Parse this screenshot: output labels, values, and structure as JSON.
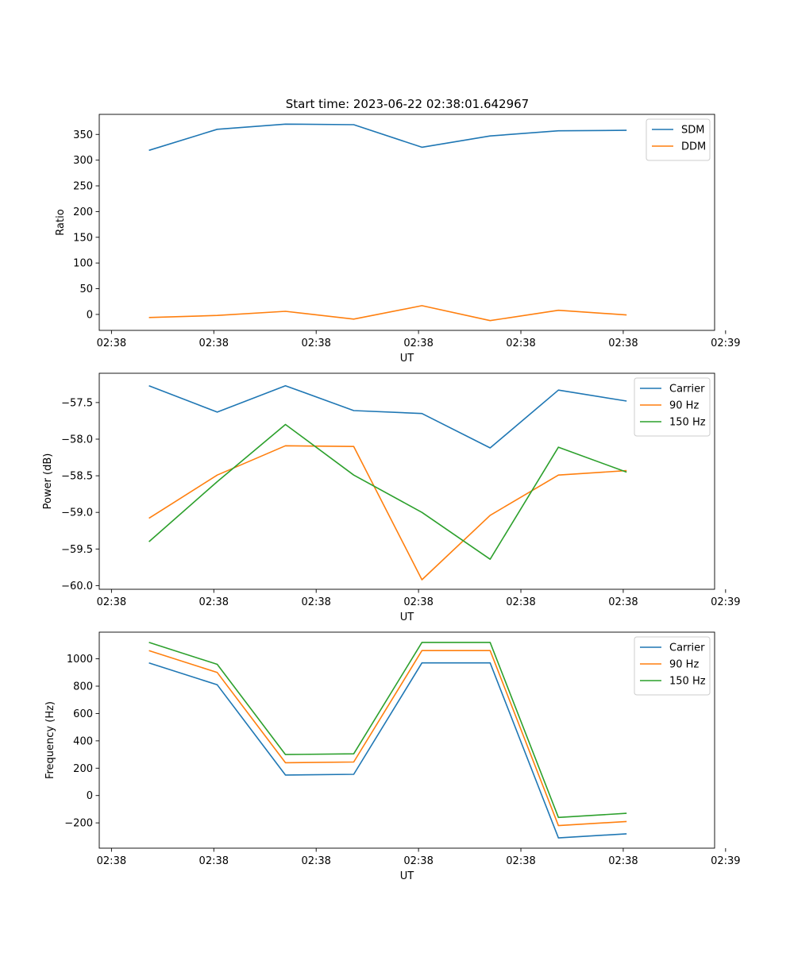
{
  "figure": {
    "title": "Start time: 2023-06-22 02:38:01.642967"
  },
  "chart_data": [
    {
      "type": "line",
      "xlabel": "UT",
      "ylabel": "Ratio",
      "x": [
        1,
        2,
        3,
        4,
        5,
        6,
        7,
        8
      ],
      "xlim": [
        0.271,
        9.289
      ],
      "x_ticks": [
        0.45,
        1.95,
        3.45,
        4.95,
        6.45,
        7.95,
        9.45
      ],
      "x_tick_labels": [
        "02:38",
        "02:38",
        "02:38",
        "02:38",
        "02:38",
        "02:38",
        "02:39"
      ],
      "ylim": [
        -31,
        389
      ],
      "y_ticks": [
        0,
        50,
        100,
        150,
        200,
        250,
        300,
        350
      ],
      "legend_position": "top-right",
      "series": [
        {
          "name": "SDM",
          "color": "#1f77b4",
          "values": [
            319,
            360,
            370,
            369,
            325,
            347,
            357,
            358
          ]
        },
        {
          "name": "DDM",
          "color": "#ff7f0e",
          "values": [
            -6,
            -2,
            6,
            -9,
            17,
            -12,
            8,
            -1
          ]
        }
      ]
    },
    {
      "type": "line",
      "xlabel": "UT",
      "ylabel": "Power (dB)",
      "x": [
        1,
        2,
        3,
        4,
        5,
        6,
        7,
        8
      ],
      "xlim": [
        0.271,
        9.289
      ],
      "x_ticks": [
        0.45,
        1.95,
        3.45,
        4.95,
        6.45,
        7.95,
        9.45
      ],
      "x_tick_labels": [
        "02:38",
        "02:38",
        "02:38",
        "02:38",
        "02:38",
        "02:38",
        "02:39"
      ],
      "ylim": [
        -60.05,
        -57.1
      ],
      "y_ticks": [
        -60.0,
        -59.5,
        -59.0,
        -58.5,
        -58.0,
        -57.5
      ],
      "y_tick_labels": [
        "−60.0",
        "−59.5",
        "−59.0",
        "−58.5",
        "−58.0",
        "−57.5"
      ],
      "legend_position": "top-right",
      "series": [
        {
          "name": "Carrier",
          "color": "#1f77b4",
          "values": [
            -57.27,
            -57.63,
            -57.27,
            -57.61,
            -57.65,
            -58.12,
            -57.33,
            -57.48
          ]
        },
        {
          "name": "90 Hz",
          "color": "#ff7f0e",
          "values": [
            -59.08,
            -58.49,
            -58.09,
            -58.1,
            -59.92,
            -59.04,
            -58.49,
            -58.43
          ]
        },
        {
          "name": "150 Hz",
          "color": "#2ca02c",
          "values": [
            -59.4,
            -58.58,
            -57.8,
            -58.49,
            -59.0,
            -59.64,
            -58.11,
            -58.45
          ]
        }
      ]
    },
    {
      "type": "line",
      "xlabel": "UT",
      "ylabel": "Frequency (Hz)",
      "x": [
        1,
        2,
        3,
        4,
        5,
        6,
        7,
        8
      ],
      "xlim": [
        0.271,
        9.289
      ],
      "x_ticks": [
        0.45,
        1.95,
        3.45,
        4.95,
        6.45,
        7.95,
        9.45
      ],
      "x_tick_labels": [
        "02:38",
        "02:38",
        "02:38",
        "02:38",
        "02:38",
        "02:38",
        "02:39"
      ],
      "ylim": [
        -385,
        1195
      ],
      "y_ticks": [
        -200,
        0,
        200,
        400,
        600,
        800,
        1000
      ],
      "y_tick_labels": [
        "−200",
        "0",
        "200",
        "400",
        "600",
        "800",
        "1000"
      ],
      "legend_position": "top-right",
      "series": [
        {
          "name": "Carrier",
          "color": "#1f77b4",
          "values": [
            970,
            810,
            150,
            155,
            970,
            970,
            -310,
            -280
          ]
        },
        {
          "name": "90 Hz",
          "color": "#ff7f0e",
          "values": [
            1060,
            900,
            240,
            245,
            1060,
            1060,
            -220,
            -190
          ]
        },
        {
          "name": "150 Hz",
          "color": "#2ca02c",
          "values": [
            1120,
            960,
            300,
            305,
            1120,
            1120,
            -160,
            -130
          ]
        }
      ]
    }
  ]
}
